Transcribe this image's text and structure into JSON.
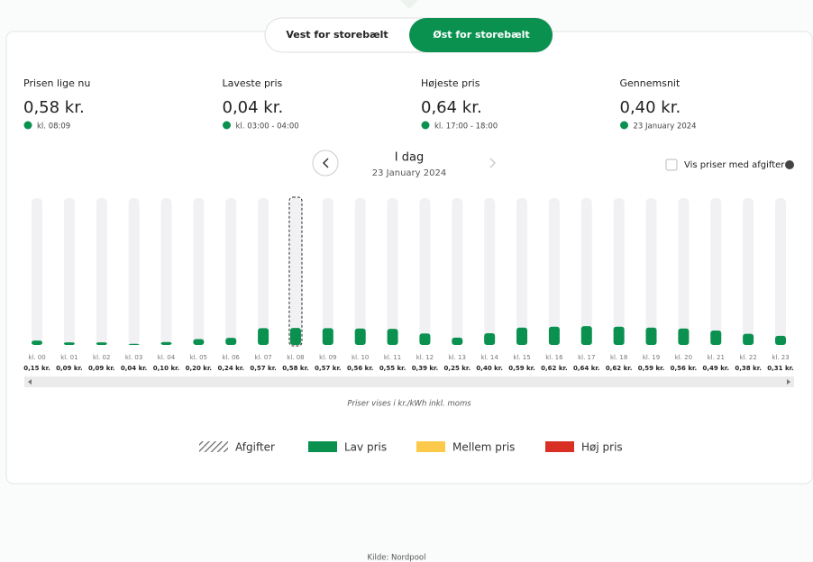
{
  "tabs": [
    "Vest for storebælt",
    "Øst for storebælt"
  ],
  "active_tab": 1,
  "stats": [
    {
      "label": "Prisen lige nu",
      "value": "0,58 kr.",
      "note": "kl. 08:09"
    },
    {
      "label": "Laveste pris",
      "value": "0,04 kr.",
      "note": "kl. 03:00 - 04:00"
    },
    {
      "label": "Højeste pris",
      "value": "0,64 kr.",
      "note": "kl. 17:00 - 18:00"
    },
    {
      "label": "Gennemsnit",
      "value": "0,40 kr.",
      "note": "23 January 2024"
    }
  ],
  "day": {
    "title": "I dag",
    "date": "23 January 2024"
  },
  "checkbox": "Vis priser med afgifter",
  "chart_data": {
    "type": "bar",
    "categories": [
      "kl. 00",
      "kl. 01",
      "kl. 02",
      "kl. 03",
      "kl. 04",
      "kl. 05",
      "kl. 06",
      "kl. 07",
      "kl. 08",
      "kl. 09",
      "kl. 10",
      "kl. 11",
      "kl. 12",
      "kl. 13",
      "kl. 14",
      "kl. 15",
      "kl. 16",
      "kl. 17",
      "kl. 18",
      "kl. 19",
      "kl. 20",
      "kl. 21",
      "kl. 22",
      "kl. 23"
    ],
    "values": [
      0.15,
      0.09,
      0.09,
      0.04,
      0.1,
      0.2,
      0.24,
      0.57,
      0.58,
      0.57,
      0.56,
      0.55,
      0.39,
      0.25,
      0.4,
      0.59,
      0.62,
      0.64,
      0.62,
      0.59,
      0.56,
      0.49,
      0.38,
      0.31
    ],
    "value_labels": [
      "0,15 kr.",
      "0,09 kr.",
      "0,09 kr.",
      "0,04 kr.",
      "0,10 kr.",
      "0,20 kr.",
      "0,24 kr.",
      "0,57 kr.",
      "0,58 kr.",
      "0,57 kr.",
      "0,56 kr.",
      "0,55 kr.",
      "0,39 kr.",
      "0,25 kr.",
      "0,40 kr.",
      "0,59 kr.",
      "0,62 kr.",
      "0,64 kr.",
      "0,62 kr.",
      "0,59 kr.",
      "0,56 kr.",
      "0,49 kr.",
      "0,38 kr.",
      "0,31 kr."
    ],
    "ylim": [
      0,
      5
    ],
    "color": "#0a9150",
    "selected": 8
  },
  "note": "Priser vises i kr./kWh inkl. moms",
  "legend": [
    {
      "name": "Afgifter",
      "color": "hatch"
    },
    {
      "name": "Lav pris",
      "color": "#0a9150"
    },
    {
      "name": "Mellem pris",
      "color": "#fcc94a"
    },
    {
      "name": "Høj pris",
      "color": "#d93025"
    }
  ],
  "source": "Kilde: Nordpool"
}
